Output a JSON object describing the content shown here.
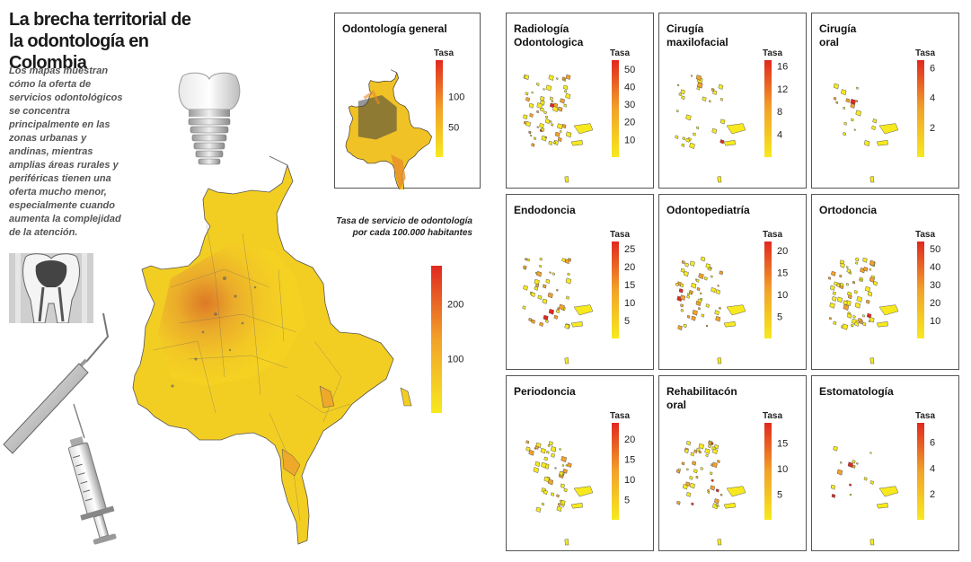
{
  "title": "La brecha territorial de la odontología en Colombia",
  "description": "Los mapas muestran cómo la oferta de servicios odontológicos se concentra principalmente en las zonas urbanas y andinas, mientras amplias áreas rurales y periféricas tienen una oferta mucho menor, especialmente cuando aumenta la complejidad de la atención.",
  "main_map": {
    "legend_title": "Tasa de servicio de odontología por cada 100.000 habitantes",
    "legend_ticks": [
      200,
      100
    ],
    "legend_max": 270
  },
  "legend_label": "Tasa",
  "colors": {
    "low": "#f7e91e",
    "mid": "#f2a22a",
    "high": "#e0291f",
    "border": "#555555"
  },
  "icons": [
    "tooth-implant-icon",
    "tooth-cross-section-icon",
    "dental-explorer-icon",
    "syringe-icon"
  ],
  "panels": [
    {
      "title_lines": [
        "Odontología general"
      ],
      "ticks": [
        100,
        50
      ],
      "max": 160
    },
    {
      "title_lines": [
        "Radiología",
        "Odontologica"
      ],
      "ticks": [
        50,
        40,
        30,
        20,
        10
      ],
      "max": 55
    },
    {
      "title_lines": [
        "Cirugía",
        "maxilofacial"
      ],
      "ticks": [
        16,
        12,
        8,
        4
      ],
      "max": 17
    },
    {
      "title_lines": [
        "Cirugía",
        "oral"
      ],
      "ticks": [
        6,
        4,
        2
      ],
      "max": 6.5
    },
    {
      "title_lines": [
        "Endodoncia"
      ],
      "ticks": [
        25,
        20,
        15,
        10,
        5
      ],
      "max": 27
    },
    {
      "title_lines": [
        "Odontopediatría"
      ],
      "ticks": [
        20,
        15,
        10,
        5
      ],
      "max": 22
    },
    {
      "title_lines": [
        "Ortodoncia"
      ],
      "ticks": [
        50,
        40,
        30,
        20,
        10
      ],
      "max": 54
    },
    {
      "title_lines": [
        "Periodoncia"
      ],
      "ticks": [
        20,
        15,
        10,
        5
      ],
      "max": 24
    },
    {
      "title_lines": [
        "Rehabilitacón",
        "oral"
      ],
      "ticks": [
        15,
        10,
        5
      ],
      "max": 19
    },
    {
      "title_lines": [
        "Estomatología"
      ],
      "ticks": [
        6,
        4,
        2
      ],
      "max": 7.5
    }
  ]
}
